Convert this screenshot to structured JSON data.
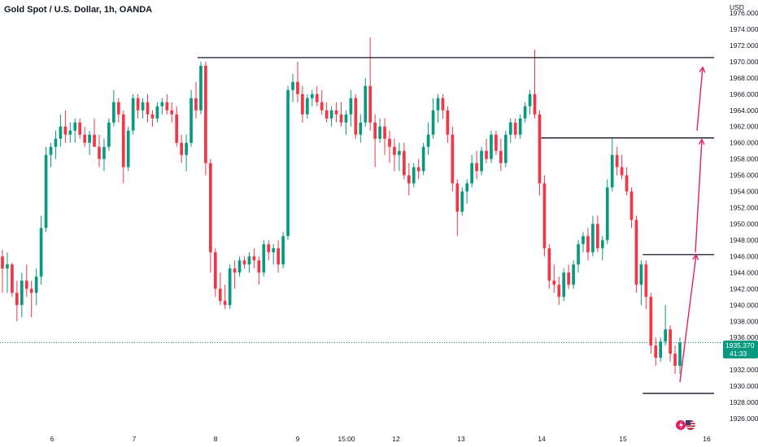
{
  "header": {
    "title": "Gold Spot / U.S. Dollar, 1h, OANDA"
  },
  "axis": {
    "currency_label": "USD"
  },
  "price_badge": {
    "price": "1935.370",
    "countdown": "41:33"
  },
  "colors": {
    "up": "#089981",
    "down": "#f23645",
    "line": "#131722",
    "arrow": "#e91e63",
    "price_line": "#089981"
  },
  "icons": {
    "logo": "tradingview-flag-icons"
  },
  "chart_data": {
    "type": "candlestick",
    "symbol": "Gold Spot / U.S. Dollar",
    "interval": "1h",
    "source": "OANDA",
    "y_unit": "USD",
    "ylim": [
      1925.0,
      1977.0
    ],
    "y_ticks": [
      "1926.000",
      "1928.000",
      "1930.000",
      "1932.000",
      "1936.000",
      "1938.000",
      "1940.000",
      "1942.000",
      "1944.000",
      "1946.000",
      "1948.000",
      "1950.000",
      "1952.000",
      "1954.000",
      "1956.000",
      "1958.000",
      "1960.000",
      "1962.000",
      "1964.000",
      "1966.000",
      "1968.000",
      "1970.000",
      "1972.000",
      "1974.000",
      "1976.000"
    ],
    "x_ticks": [
      "6",
      "7",
      "8",
      "9",
      "15:00",
      "12",
      "13",
      "14",
      "15",
      "16"
    ],
    "last_price": 1935.37,
    "candles": [
      [
        1946.0,
        1946.8,
        1941.5,
        1944.5
      ],
      [
        1944.5,
        1946.5,
        1941.5,
        1945.0
      ],
      [
        1945.0,
        1945.2,
        1941.0,
        1941.5
      ],
      [
        1941.5,
        1943.0,
        1938.0,
        1940.0
      ],
      [
        1940.0,
        1944.0,
        1938.5,
        1943.0
      ],
      [
        1943.0,
        1945.0,
        1941.0,
        1942.0
      ],
      [
        1942.0,
        1943.0,
        1938.5,
        1941.5
      ],
      [
        1941.5,
        1944.5,
        1940.0,
        1943.5
      ],
      [
        1943.5,
        1951.0,
        1942.5,
        1949.5
      ],
      [
        1949.5,
        1959.5,
        1949.0,
        1958.5
      ],
      [
        1958.5,
        1960.0,
        1957.0,
        1959.5
      ],
      [
        1959.5,
        1961.5,
        1958.0,
        1960.5
      ],
      [
        1960.5,
        1963.5,
        1959.5,
        1962.0
      ],
      [
        1962.0,
        1964.0,
        1960.0,
        1961.0
      ],
      [
        1961.0,
        1962.5,
        1960.0,
        1961.5
      ],
      [
        1961.5,
        1963.0,
        1960.0,
        1962.5
      ],
      [
        1962.5,
        1963.0,
        1960.5,
        1961.0
      ],
      [
        1961.0,
        1962.0,
        1959.5,
        1960.0
      ],
      [
        1960.0,
        1961.5,
        1958.5,
        1961.0
      ],
      [
        1961.0,
        1963.0,
        1959.5,
        1959.5
      ],
      [
        1959.5,
        1961.0,
        1957.0,
        1958.0
      ],
      [
        1958.0,
        1960.5,
        1956.5,
        1959.5
      ],
      [
        1959.5,
        1963.0,
        1959.0,
        1962.5
      ],
      [
        1962.5,
        1966.5,
        1962.0,
        1965.0
      ],
      [
        1965.0,
        1965.5,
        1962.5,
        1963.5
      ],
      [
        1963.5,
        1964.0,
        1955.0,
        1957.0
      ],
      [
        1957.0,
        1962.0,
        1956.5,
        1961.5
      ],
      [
        1961.5,
        1966.0,
        1961.0,
        1965.5
      ],
      [
        1965.5,
        1966.0,
        1963.0,
        1964.0
      ],
      [
        1964.0,
        1965.5,
        1963.0,
        1965.0
      ],
      [
        1965.0,
        1966.0,
        1962.5,
        1963.5
      ],
      [
        1963.5,
        1964.0,
        1962.0,
        1963.0
      ],
      [
        1963.0,
        1965.0,
        1962.5,
        1964.5
      ],
      [
        1964.5,
        1965.5,
        1963.5,
        1965.0
      ],
      [
        1965.0,
        1966.0,
        1963.5,
        1964.0
      ],
      [
        1964.0,
        1965.0,
        1962.5,
        1963.5
      ],
      [
        1963.5,
        1964.5,
        1959.5,
        1960.0
      ],
      [
        1960.0,
        1961.0,
        1957.5,
        1958.5
      ],
      [
        1958.5,
        1961.0,
        1956.5,
        1960.0
      ],
      [
        1960.0,
        1966.5,
        1959.5,
        1965.5
      ],
      [
        1965.5,
        1967.5,
        1963.0,
        1964.0
      ],
      [
        1964.0,
        1970.0,
        1963.5,
        1969.5
      ],
      [
        1969.5,
        1970.0,
        1956.0,
        1957.5
      ],
      [
        1957.5,
        1958.0,
        1944.0,
        1946.5
      ],
      [
        1946.5,
        1947.0,
        1941.0,
        1942.0
      ],
      [
        1942.0,
        1944.0,
        1940.0,
        1940.5
      ],
      [
        1940.5,
        1942.5,
        1939.5,
        1940.0
      ],
      [
        1940.0,
        1945.0,
        1939.5,
        1944.5
      ],
      [
        1944.5,
        1945.5,
        1942.0,
        1944.0
      ],
      [
        1944.0,
        1946.0,
        1943.5,
        1945.5
      ],
      [
        1945.5,
        1946.0,
        1944.5,
        1945.0
      ],
      [
        1945.0,
        1946.5,
        1944.0,
        1946.0
      ],
      [
        1946.0,
        1947.0,
        1944.5,
        1945.5
      ],
      [
        1945.5,
        1946.0,
        1942.5,
        1944.0
      ],
      [
        1944.0,
        1948.0,
        1943.5,
        1947.5
      ],
      [
        1947.5,
        1948.0,
        1945.5,
        1946.5
      ],
      [
        1946.5,
        1947.5,
        1945.0,
        1947.0
      ],
      [
        1947.0,
        1948.0,
        1944.0,
        1945.0
      ],
      [
        1945.0,
        1949.0,
        1944.5,
        1948.5
      ],
      [
        1948.5,
        1967.0,
        1948.0,
        1966.5
      ],
      [
        1966.5,
        1968.5,
        1965.0,
        1967.5
      ],
      [
        1967.5,
        1970.0,
        1965.0,
        1966.0
      ],
      [
        1966.0,
        1967.0,
        1962.5,
        1963.5
      ],
      [
        1963.5,
        1966.0,
        1963.0,
        1965.5
      ],
      [
        1965.5,
        1966.5,
        1964.5,
        1966.0
      ],
      [
        1966.0,
        1967.0,
        1964.5,
        1965.0
      ],
      [
        1965.0,
        1966.5,
        1963.5,
        1964.0
      ],
      [
        1964.0,
        1965.0,
        1962.5,
        1963.0
      ],
      [
        1963.0,
        1964.5,
        1962.0,
        1964.0
      ],
      [
        1964.0,
        1965.0,
        1962.5,
        1963.5
      ],
      [
        1963.5,
        1965.0,
        1962.0,
        1962.5
      ],
      [
        1962.5,
        1964.0,
        1961.0,
        1963.5
      ],
      [
        1963.5,
        1966.5,
        1962.0,
        1965.5
      ],
      [
        1965.5,
        1966.0,
        1960.5,
        1961.0
      ],
      [
        1961.0,
        1963.5,
        1960.0,
        1962.5
      ],
      [
        1962.5,
        1968.0,
        1962.0,
        1967.0
      ],
      [
        1967.0,
        1973.0,
        1961.5,
        1962.5
      ],
      [
        1962.5,
        1963.5,
        1957.0,
        1960.5
      ],
      [
        1960.5,
        1963.0,
        1960.0,
        1962.0
      ],
      [
        1962.0,
        1963.0,
        1958.5,
        1960.5
      ],
      [
        1960.5,
        1961.5,
        1957.5,
        1959.5
      ],
      [
        1959.5,
        1960.5,
        1956.5,
        1958.5
      ],
      [
        1958.5,
        1960.0,
        1956.5,
        1959.0
      ],
      [
        1959.0,
        1960.0,
        1955.5,
        1956.0
      ],
      [
        1956.0,
        1957.5,
        1953.5,
        1955.0
      ],
      [
        1955.0,
        1957.5,
        1954.5,
        1957.0
      ],
      [
        1957.0,
        1958.0,
        1955.5,
        1956.5
      ],
      [
        1956.5,
        1960.0,
        1956.0,
        1959.5
      ],
      [
        1959.5,
        1962.5,
        1958.5,
        1961.0
      ],
      [
        1961.0,
        1965.5,
        1960.5,
        1964.0
      ],
      [
        1964.0,
        1966.0,
        1962.5,
        1965.5
      ],
      [
        1965.5,
        1966.0,
        1963.0,
        1964.0
      ],
      [
        1964.0,
        1964.5,
        1960.0,
        1961.0
      ],
      [
        1961.0,
        1962.0,
        1954.0,
        1955.0
      ],
      [
        1955.0,
        1955.5,
        1948.5,
        1951.5
      ],
      [
        1951.5,
        1954.5,
        1951.0,
        1954.0
      ],
      [
        1954.0,
        1955.5,
        1952.5,
        1955.0
      ],
      [
        1955.0,
        1958.5,
        1954.5,
        1957.5
      ],
      [
        1957.5,
        1959.0,
        1955.5,
        1956.5
      ],
      [
        1956.5,
        1959.5,
        1956.0,
        1959.0
      ],
      [
        1959.0,
        1960.5,
        1957.5,
        1958.0
      ],
      [
        1958.0,
        1961.5,
        1957.5,
        1961.0
      ],
      [
        1961.0,
        1961.5,
        1958.5,
        1959.0
      ],
      [
        1959.0,
        1960.5,
        1956.5,
        1957.5
      ],
      [
        1957.5,
        1961.5,
        1957.0,
        1961.0
      ],
      [
        1961.0,
        1963.0,
        1960.0,
        1962.5
      ],
      [
        1962.5,
        1963.0,
        1960.5,
        1961.0
      ],
      [
        1961.0,
        1963.5,
        1960.5,
        1963.0
      ],
      [
        1963.0,
        1965.0,
        1962.5,
        1964.5
      ],
      [
        1964.5,
        1966.5,
        1963.5,
        1966.0
      ],
      [
        1966.0,
        1971.5,
        1963.0,
        1963.5
      ],
      [
        1963.5,
        1964.0,
        1953.5,
        1955.0
      ],
      [
        1955.0,
        1956.0,
        1946.0,
        1947.0
      ],
      [
        1947.0,
        1947.5,
        1942.0,
        1943.0
      ],
      [
        1943.0,
        1945.0,
        1941.5,
        1942.5
      ],
      [
        1942.5,
        1943.5,
        1940.0,
        1941.0
      ],
      [
        1941.0,
        1944.5,
        1940.5,
        1944.0
      ],
      [
        1944.0,
        1945.0,
        1942.0,
        1942.5
      ],
      [
        1942.5,
        1945.5,
        1942.0,
        1945.0
      ],
      [
        1945.0,
        1948.0,
        1944.0,
        1947.5
      ],
      [
        1947.5,
        1949.0,
        1946.5,
        1948.5
      ],
      [
        1948.5,
        1949.5,
        1945.5,
        1946.5
      ],
      [
        1946.5,
        1951.0,
        1946.0,
        1950.0
      ],
      [
        1950.0,
        1951.0,
        1946.5,
        1947.0
      ],
      [
        1947.0,
        1948.5,
        1945.5,
        1948.0
      ],
      [
        1948.0,
        1955.5,
        1947.5,
        1954.5
      ],
      [
        1954.5,
        1960.5,
        1954.0,
        1958.5
      ],
      [
        1958.5,
        1959.5,
        1956.0,
        1957.0
      ],
      [
        1957.0,
        1958.5,
        1955.5,
        1956.0
      ],
      [
        1956.0,
        1957.0,
        1953.5,
        1954.0
      ],
      [
        1954.0,
        1954.5,
        1949.5,
        1950.5
      ],
      [
        1950.5,
        1951.0,
        1941.5,
        1942.5
      ],
      [
        1942.5,
        1945.5,
        1940.0,
        1945.0
      ],
      [
        1945.0,
        1945.5,
        1939.5,
        1941.0
      ],
      [
        1941.0,
        1941.5,
        1934.0,
        1935.0
      ],
      [
        1935.0,
        1936.0,
        1932.5,
        1933.5
      ],
      [
        1933.5,
        1936.0,
        1933.0,
        1935.5
      ],
      [
        1935.5,
        1940.0,
        1935.0,
        1937.0
      ],
      [
        1937.0,
        1937.5,
        1933.0,
        1934.0
      ],
      [
        1934.0,
        1935.0,
        1931.5,
        1932.5
      ],
      [
        1932.5,
        1936.0,
        1931.5,
        1935.37
      ]
    ],
    "annotations": {
      "horizontal_lines": [
        {
          "price": 1970.5,
          "from_candle": 41,
          "to": "end"
        },
        {
          "price": 1960.6,
          "from_candle": 112,
          "to": "end"
        },
        {
          "price": 1946.2,
          "from_candle": 133,
          "to": "end"
        },
        {
          "price": 1929.1,
          "from_candle": 133,
          "to": "end"
        }
      ],
      "arrows": [
        {
          "from_price": 1930.5,
          "to_price": 1946.2
        },
        {
          "from_price": 1946.5,
          "to_price": 1960.4
        },
        {
          "from_price": 1961.5,
          "to_price": 1969.3
        }
      ]
    }
  }
}
